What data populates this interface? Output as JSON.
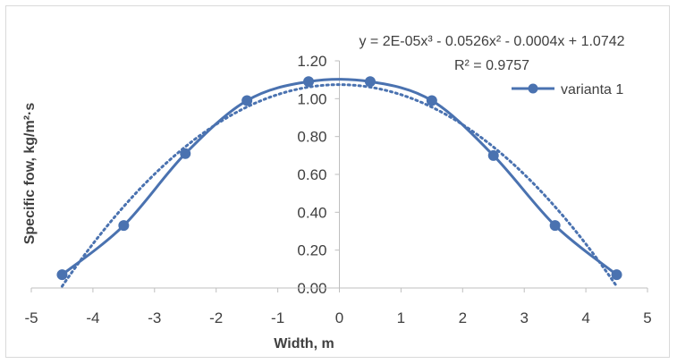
{
  "chart_data": {
    "type": "scatter",
    "title": "",
    "xlabel": "Width, m",
    "ylabel": "Specific fow, kg/m²·s",
    "xlim": [
      -5,
      5
    ],
    "ylim": [
      0,
      1.2
    ],
    "xticks": [
      "-5",
      "-4",
      "-3",
      "-2",
      "-1",
      "0",
      "1",
      "2",
      "3",
      "4",
      "5"
    ],
    "yticks": [
      "0.00",
      "0.20",
      "0.40",
      "0.60",
      "0.80",
      "1.00",
      "1.20"
    ],
    "grid": false,
    "legend_position": "top-right",
    "series": [
      {
        "name": "varianta 1",
        "color": "#4a72b0",
        "x": [
          -4.5,
          -3.5,
          -2.5,
          -1.5,
          -0.5,
          0.5,
          1.5,
          2.5,
          3.5,
          4.5
        ],
        "y": [
          0.07,
          0.33,
          0.71,
          0.99,
          1.09,
          1.09,
          0.99,
          0.7,
          0.33,
          0.07
        ]
      }
    ],
    "trendline": {
      "type": "polynomial",
      "order": 3,
      "coefficients": [
        2e-05,
        -0.0526,
        -0.0004,
        1.0742
      ],
      "equation": "y = 2E-05x³ - 0.0526x² - 0.0004x + 1.0742",
      "r_squared": "R² = 0.9757",
      "style": "dotted",
      "color": "#4a72b0"
    }
  }
}
